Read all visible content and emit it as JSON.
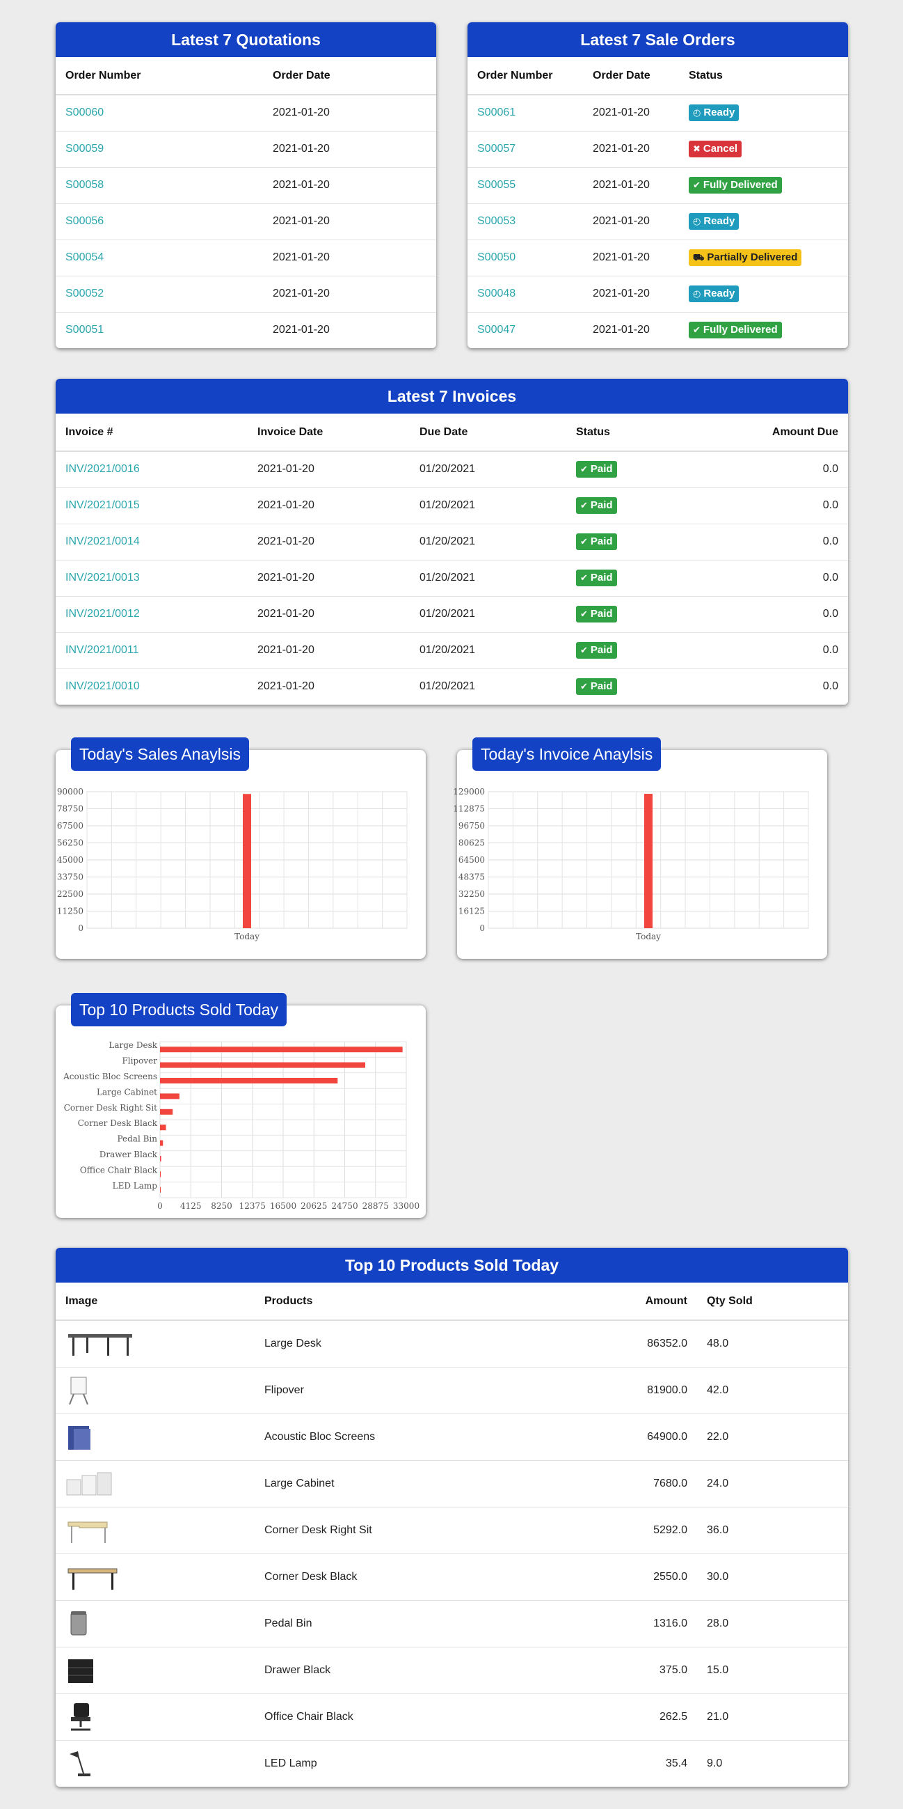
{
  "quotations": {
    "title": "Latest 7 Quotations",
    "columns": [
      "Order Number",
      "Order Date"
    ],
    "rows": [
      {
        "number": "S00060",
        "date": "2021-01-20"
      },
      {
        "number": "S00059",
        "date": "2021-01-20"
      },
      {
        "number": "S00058",
        "date": "2021-01-20"
      },
      {
        "number": "S00056",
        "date": "2021-01-20"
      },
      {
        "number": "S00054",
        "date": "2021-01-20"
      },
      {
        "number": "S00052",
        "date": "2021-01-20"
      },
      {
        "number": "S00051",
        "date": "2021-01-20"
      }
    ]
  },
  "sale_orders": {
    "title": "Latest 7 Sale Orders",
    "columns": [
      "Order Number",
      "Order Date",
      "Status"
    ],
    "rows": [
      {
        "number": "S00061",
        "date": "2021-01-20",
        "status": "Ready",
        "status_type": "ready"
      },
      {
        "number": "S00057",
        "date": "2021-01-20",
        "status": "Cancel",
        "status_type": "cancel"
      },
      {
        "number": "S00055",
        "date": "2021-01-20",
        "status": "Fully Delivered",
        "status_type": "full"
      },
      {
        "number": "S00053",
        "date": "2021-01-20",
        "status": "Ready",
        "status_type": "ready"
      },
      {
        "number": "S00050",
        "date": "2021-01-20",
        "status": "Partially Delivered",
        "status_type": "partial"
      },
      {
        "number": "S00048",
        "date": "2021-01-20",
        "status": "Ready",
        "status_type": "ready"
      },
      {
        "number": "S00047",
        "date": "2021-01-20",
        "status": "Fully Delivered",
        "status_type": "full"
      }
    ]
  },
  "invoices": {
    "title": "Latest 7 Invoices",
    "columns": [
      "Invoice #",
      "Invoice Date",
      "Due Date",
      "Status",
      "Amount Due"
    ],
    "rows": [
      {
        "number": "INV/2021/0016",
        "date": "2021-01-20",
        "due": "01/20/2021",
        "status": "Paid",
        "amount": "0.0"
      },
      {
        "number": "INV/2021/0015",
        "date": "2021-01-20",
        "due": "01/20/2021",
        "status": "Paid",
        "amount": "0.0"
      },
      {
        "number": "INV/2021/0014",
        "date": "2021-01-20",
        "due": "01/20/2021",
        "status": "Paid",
        "amount": "0.0"
      },
      {
        "number": "INV/2021/0013",
        "date": "2021-01-20",
        "due": "01/20/2021",
        "status": "Paid",
        "amount": "0.0"
      },
      {
        "number": "INV/2021/0012",
        "date": "2021-01-20",
        "due": "01/20/2021",
        "status": "Paid",
        "amount": "0.0"
      },
      {
        "number": "INV/2021/0011",
        "date": "2021-01-20",
        "due": "01/20/2021",
        "status": "Paid",
        "amount": "0.0"
      },
      {
        "number": "INV/2021/0010",
        "date": "2021-01-20",
        "due": "01/20/2021",
        "status": "Paid",
        "amount": "0.0"
      }
    ]
  },
  "sales_chart": {
    "title": "Today's Sales Anaylsis"
  },
  "invoice_chart": {
    "title": "Today's Invoice Anaylsis"
  },
  "top_products_chart": {
    "title": "Top 10 Products Sold Today"
  },
  "top_products_table": {
    "title": "Top 10 Products Sold Today",
    "columns": [
      "Image",
      "Products",
      "Amount",
      "Qty Sold"
    ],
    "rows": [
      {
        "product": "Large Desk",
        "amount": "86352.0",
        "qty": "48.0",
        "image": "large-desk-image"
      },
      {
        "product": "Flipover",
        "amount": "81900.0",
        "qty": "42.0",
        "image": "flipover-image"
      },
      {
        "product": "Acoustic Bloc Screens",
        "amount": "64900.0",
        "qty": "22.0",
        "image": "acoustic-screens-image"
      },
      {
        "product": "Large Cabinet",
        "amount": "7680.0",
        "qty": "24.0",
        "image": "large-cabinet-image"
      },
      {
        "product": "Corner Desk Right Sit",
        "amount": "5292.0",
        "qty": "36.0",
        "image": "corner-desk-right-image"
      },
      {
        "product": "Corner Desk Black",
        "amount": "2550.0",
        "qty": "30.0",
        "image": "corner-desk-black-image"
      },
      {
        "product": "Pedal Bin",
        "amount": "1316.0",
        "qty": "28.0",
        "image": "pedal-bin-image"
      },
      {
        "product": "Drawer Black",
        "amount": "375.0",
        "qty": "15.0",
        "image": "drawer-black-image"
      },
      {
        "product": "Office Chair Black",
        "amount": "262.5",
        "qty": "21.0",
        "image": "office-chair-image"
      },
      {
        "product": "LED Lamp",
        "amount": "35.4",
        "qty": "9.0",
        "image": "led-lamp-image"
      }
    ]
  },
  "colors": {
    "header_blue": "#1342c4",
    "link_teal": "#2aa6ad",
    "bar_red": "#f1453d"
  },
  "chart_data": [
    {
      "type": "bar",
      "title": "Today's Sales Anaylsis",
      "categories": [
        "Today"
      ],
      "values": [
        88500
      ],
      "ylim": [
        0,
        90000
      ],
      "yticks": [
        "0",
        "11250",
        "22500",
        "33750",
        "45000",
        "56250",
        "67500",
        "78750",
        "90000"
      ],
      "grid": true
    },
    {
      "type": "bar",
      "title": "Today's Invoice Anaylsis",
      "categories": [
        "Today"
      ],
      "values": [
        127000
      ],
      "ylim": [
        0,
        129000
      ],
      "yticks": [
        "0",
        "16125",
        "32250",
        "48375",
        "64500",
        "80625",
        "96750",
        "112875",
        "129000"
      ],
      "grid": true
    },
    {
      "type": "bar",
      "orientation": "horizontal",
      "title": "Top 10 Products Sold Today",
      "categories": [
        "Large Desk",
        "Flipover",
        "Acoustic Bloc Screens",
        "Large Cabinet",
        "Corner Desk Right Sit",
        "Corner Desk Black",
        "Pedal Bin",
        "Drawer Black",
        "Office Chair Black",
        "LED Lamp"
      ],
      "values": [
        32500,
        27500,
        23800,
        2600,
        1700,
        800,
        400,
        150,
        100,
        20
      ],
      "xlim": [
        0,
        33000
      ],
      "xticks": [
        "0",
        "4125",
        "8250",
        "12375",
        "16500",
        "20625",
        "24750",
        "28875",
        "33000"
      ],
      "grid": true
    }
  ]
}
